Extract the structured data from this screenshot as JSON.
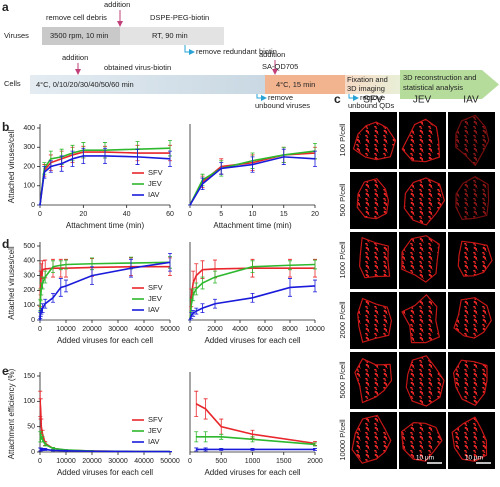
{
  "panel_labels": [
    "a",
    "b",
    "c",
    "d",
    "e"
  ],
  "workflow": {
    "viruses": "Viruses",
    "cells": "Cells",
    "step1_top": "remove cell debris",
    "step1": "3500 rpm, 10 min",
    "addition_1": "addition",
    "reagent_1": "DSPE-PEG-biotin",
    "step2": "RT, 90 min",
    "remove_1": "remove redundant biotin",
    "addition_2": "addition",
    "obtained": "obtained virus-biotin",
    "step3": "4°C, 0/10/20/30/40/50/60 min",
    "addition_3": "addition",
    "reagent_2": "SA-QD705",
    "step4": "4°C, 15 min",
    "remove_2": [
      "remove",
      "unbound viruses"
    ],
    "step5": [
      "Fixation and",
      "3D imaging"
    ],
    "remove_3": [
      "remove",
      "unbound QDs"
    ],
    "step6": [
      "3D reconstruction and",
      "statistical analysis"
    ]
  },
  "images": {
    "columns": [
      "SFV",
      "JEV",
      "IAV"
    ],
    "rows": [
      "100 P/cell",
      "500 P/cell",
      "1000 P/cell",
      "2000 P/cell",
      "5000 P/cell",
      "10000 P/cell"
    ],
    "scale_bar": "10 μm"
  },
  "chart_data": [
    {
      "type": "line",
      "xlabel": "Attachment time (min)",
      "ylabel": "Attached viruses/cell",
      "x": [
        0,
        2,
        5,
        10,
        15,
        20,
        30,
        45,
        60
      ],
      "xlim": [
        0,
        60
      ],
      "xticks": [
        0,
        20,
        40,
        60
      ],
      "ylim": [
        0,
        400
      ],
      "yticks": [
        0,
        100,
        200,
        300,
        400
      ],
      "legend": "lower right",
      "series": [
        {
          "name": "SFV",
          "color": "#e8262b",
          "values": [
            0,
            180,
            220,
            240,
            260,
            275,
            275,
            270,
            270
          ],
          "errors": [
            0,
            30,
            40,
            40,
            40,
            30,
            30,
            40,
            40
          ]
        },
        {
          "name": "JEV",
          "color": "#2db82d",
          "values": [
            0,
            190,
            240,
            250,
            270,
            285,
            285,
            290,
            295
          ],
          "errors": [
            0,
            30,
            40,
            40,
            40,
            40,
            40,
            40,
            40
          ]
        },
        {
          "name": "IAV",
          "color": "#1a1adb",
          "values": [
            0,
            170,
            200,
            215,
            240,
            255,
            255,
            250,
            240
          ],
          "errors": [
            0,
            30,
            30,
            40,
            40,
            40,
            40,
            40,
            40
          ]
        }
      ]
    },
    {
      "type": "line",
      "xlabel": "Attachment time (min)",
      "x": [
        0,
        2,
        5,
        10,
        15,
        20
      ],
      "xlim": [
        0,
        20
      ],
      "xticks": [
        0,
        5,
        10,
        15,
        20
      ],
      "ylim": [
        0,
        400
      ],
      "series": [
        {
          "name": "SFV",
          "color": "#e8262b",
          "values": [
            0,
            120,
            200,
            220,
            260,
            270
          ],
          "errors": [
            0,
            30,
            40,
            40,
            40,
            30
          ]
        },
        {
          "name": "JEV",
          "color": "#2db82d",
          "values": [
            0,
            130,
            190,
            230,
            260,
            280
          ],
          "errors": [
            0,
            30,
            40,
            40,
            40,
            40
          ]
        },
        {
          "name": "IAV",
          "color": "#1a1adb",
          "values": [
            0,
            110,
            190,
            210,
            250,
            240
          ],
          "errors": [
            0,
            30,
            30,
            40,
            40,
            40
          ]
        }
      ]
    },
    {
      "type": "line",
      "xlabel": "Added viruses for each cell",
      "ylabel": "Attached viruses/cell",
      "x": [
        0,
        100,
        250,
        500,
        1000,
        2000,
        5000,
        8000,
        10000,
        20000,
        35000,
        50000
      ],
      "xlim": [
        0,
        50000
      ],
      "xticks": [
        0,
        10000,
        20000,
        30000,
        40000,
        50000
      ],
      "ylim": [
        0,
        500
      ],
      "yticks": [
        0,
        100,
        200,
        300,
        400,
        500
      ],
      "legend": "lower right",
      "series": [
        {
          "name": "SFV",
          "color": "#e8262b",
          "values": [
            0,
            150,
            250,
            300,
            340,
            345,
            350,
            350,
            350,
            355,
            360,
            360
          ],
          "errors": [
            0,
            60,
            80,
            80,
            60,
            60,
            60,
            60,
            60,
            60,
            60,
            60
          ]
        },
        {
          "name": "JEV",
          "color": "#2db82d",
          "values": [
            0,
            100,
            170,
            210,
            250,
            290,
            360,
            370,
            375,
            380,
            385,
            390
          ],
          "errors": [
            0,
            40,
            40,
            40,
            40,
            40,
            40,
            30,
            30,
            40,
            40,
            40
          ]
        },
        {
          "name": "IAV",
          "color": "#1a1adb",
          "values": [
            0,
            30,
            45,
            60,
            80,
            110,
            150,
            220,
            230,
            300,
            350,
            390
          ],
          "errors": [
            0,
            20,
            20,
            20,
            30,
            30,
            30,
            60,
            40,
            60,
            60,
            60
          ]
        }
      ]
    },
    {
      "type": "line",
      "xlabel": "Added viruses for each cell",
      "x": [
        0,
        100,
        250,
        500,
        1000,
        2000,
        5000,
        8000,
        10000
      ],
      "xlim": [
        0,
        10000
      ],
      "xticks": [
        0,
        2000,
        4000,
        6000,
        8000,
        10000
      ],
      "ylim": [
        0,
        500
      ],
      "series": [
        {
          "name": "SFV",
          "color": "#e8262b",
          "values": [
            0,
            150,
            250,
            300,
            340,
            345,
            350,
            350,
            350
          ],
          "errors": [
            0,
            60,
            80,
            80,
            60,
            60,
            60,
            60,
            60
          ]
        },
        {
          "name": "JEV",
          "color": "#2db82d",
          "values": [
            0,
            100,
            170,
            210,
            250,
            290,
            360,
            370,
            375
          ],
          "errors": [
            0,
            40,
            40,
            40,
            40,
            40,
            40,
            30,
            30
          ]
        },
        {
          "name": "IAV",
          "color": "#1a1adb",
          "values": [
            0,
            30,
            45,
            60,
            80,
            110,
            150,
            220,
            230
          ],
          "errors": [
            0,
            20,
            20,
            20,
            30,
            30,
            30,
            60,
            40
          ]
        }
      ]
    },
    {
      "type": "line",
      "xlabel": "Added viruses for each cell",
      "ylabel": "Attachment efficiency (%)",
      "x": [
        100,
        250,
        500,
        1000,
        2000,
        5000,
        10000,
        20000,
        35000,
        50000
      ],
      "xlim": [
        0,
        50000
      ],
      "xticks": [
        0,
        10000,
        20000,
        30000,
        40000,
        50000
      ],
      "ylim": [
        0,
        150
      ],
      "yticks": [
        0,
        50,
        100,
        150
      ],
      "legend": "lower right",
      "series": [
        {
          "name": "SFV",
          "color": "#e8262b",
          "values": [
            95,
            85,
            50,
            35,
            17,
            7,
            3.5,
            2,
            1,
            0.7
          ],
          "errors": [
            25,
            20,
            15,
            8,
            4,
            2,
            1,
            1,
            0.5,
            0.5
          ]
        },
        {
          "name": "JEV",
          "color": "#2db82d",
          "values": [
            30,
            30,
            30,
            25,
            15,
            7,
            4,
            2,
            1,
            0.8
          ],
          "errors": [
            10,
            10,
            5,
            5,
            3,
            2,
            1,
            1,
            0.5,
            0.5
          ]
        },
        {
          "name": "IAV",
          "color": "#1a1adb",
          "values": [
            5,
            5,
            5,
            5,
            5,
            3,
            2.3,
            1.5,
            1,
            0.8
          ],
          "errors": [
            3,
            3,
            2,
            2,
            2,
            1,
            1,
            0.5,
            0.5,
            0.5
          ]
        }
      ]
    },
    {
      "type": "line",
      "xlabel": "Added viruses for each cell",
      "x": [
        100,
        250,
        500,
        1000,
        2000
      ],
      "xlim": [
        0,
        2000
      ],
      "xticks": [
        0,
        500,
        1000,
        1500,
        2000
      ],
      "ylim": [
        0,
        150
      ],
      "series": [
        {
          "name": "SFV",
          "color": "#e8262b",
          "values": [
            95,
            85,
            50,
            35,
            17
          ],
          "errors": [
            25,
            20,
            15,
            8,
            4
          ]
        },
        {
          "name": "JEV",
          "color": "#2db82d",
          "values": [
            30,
            30,
            30,
            25,
            15
          ],
          "errors": [
            10,
            10,
            5,
            5,
            3
          ]
        },
        {
          "name": "IAV",
          "color": "#1a1adb",
          "values": [
            5,
            5,
            5,
            5,
            5
          ],
          "errors": [
            3,
            3,
            2,
            2,
            2
          ]
        }
      ]
    }
  ]
}
